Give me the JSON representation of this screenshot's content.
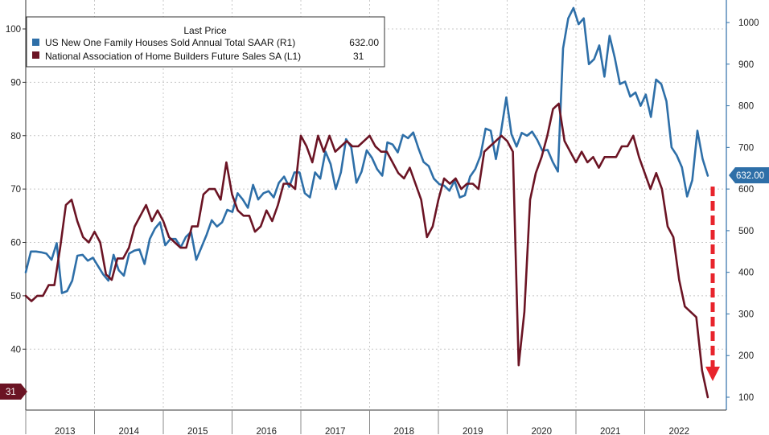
{
  "chart_data": {
    "type": "line",
    "legend_title": "Last Price",
    "legend_placement": "top-left",
    "grid": true,
    "x_labels": [
      "2013",
      "2014",
      "2015",
      "2016",
      "2017",
      "2018",
      "2019",
      "2020",
      "2021",
      "2022"
    ],
    "x_start": 2013.0,
    "x_end": 2022.9167,
    "left_axis": {
      "range": [
        30,
        107
      ],
      "ticks": [
        40,
        50,
        60,
        70,
        80,
        90,
        100
      ]
    },
    "right_axis": {
      "range": [
        90,
        1055
      ],
      "ticks": [
        100,
        200,
        300,
        400,
        500,
        600,
        700,
        800,
        900,
        1000
      ]
    },
    "series": [
      {
        "name": "US New One Family Houses Sold Annual Total SAAR  (R1)",
        "last_value": "632.00",
        "badge_label": "632.00",
        "axis": "right",
        "color": "#2e6fa8",
        "values": [
          400,
          450,
          450,
          448,
          445,
          430,
          470,
          350,
          355,
          380,
          440,
          442,
          428,
          435,
          415,
          395,
          380,
          442,
          405,
          392,
          445,
          452,
          455,
          420,
          480,
          505,
          520,
          465,
          480,
          480,
          460,
          485,
          497,
          430,
          460,
          490,
          525,
          510,
          520,
          550,
          545,
          590,
          575,
          555,
          610,
          575,
          590,
          595,
          580,
          615,
          630,
          605,
          640,
          640,
          590,
          580,
          640,
          625,
          690,
          660,
          600,
          640,
          720,
          700,
          615,
          642,
          693,
          675,
          648,
          632,
          712,
          707,
          688,
          730,
          722,
          736,
          698,
          665,
          655,
          625,
          612,
          608,
          596,
          620,
          580,
          585,
          630,
          648,
          680,
          745,
          740,
          672,
          738,
          820,
          732,
          702,
          735,
          728,
          738,
          718,
          692,
          694,
          665,
          642,
          938,
          1010,
          1035,
          996,
          1010,
          900,
          912,
          945,
          870,
          968,
          915,
          852,
          858,
          822,
          832,
          800,
          827,
          773,
          863,
          852,
          811,
          700,
          681,
          652,
          582,
          621,
          740,
          672,
          632
        ]
      },
      {
        "name": "National Association of Home Builders Future Sales SA  (L1)",
        "last_value": "31",
        "badge_label": "31",
        "axis": "left",
        "color": "#6b1424",
        "values": [
          50,
          49,
          50,
          50,
          52,
          52,
          59,
          67,
          68,
          64,
          61,
          60,
          62,
          60,
          54,
          53,
          57,
          57,
          59,
          63,
          65,
          67,
          64,
          66,
          64,
          61,
          60,
          59,
          59,
          63,
          63,
          69,
          70,
          70,
          68,
          75,
          69,
          66,
          65,
          65,
          62,
          63,
          66,
          64,
          67,
          71,
          71,
          70,
          80,
          78,
          75,
          80,
          77,
          80,
          77,
          78,
          79,
          78,
          78,
          79,
          80,
          78,
          77,
          77,
          75,
          73,
          72,
          74,
          71,
          68,
          61,
          63,
          68,
          72,
          71,
          72,
          70,
          71,
          71,
          70,
          77,
          78,
          79,
          80,
          79,
          77,
          37,
          47,
          68,
          73,
          76,
          80,
          85,
          86,
          79,
          77,
          75,
          77,
          75,
          76,
          74,
          76,
          76,
          76,
          78,
          78,
          80,
          76,
          73,
          70,
          73,
          70,
          63,
          61,
          53,
          48,
          47,
          46,
          36,
          31
        ]
      }
    ]
  }
}
